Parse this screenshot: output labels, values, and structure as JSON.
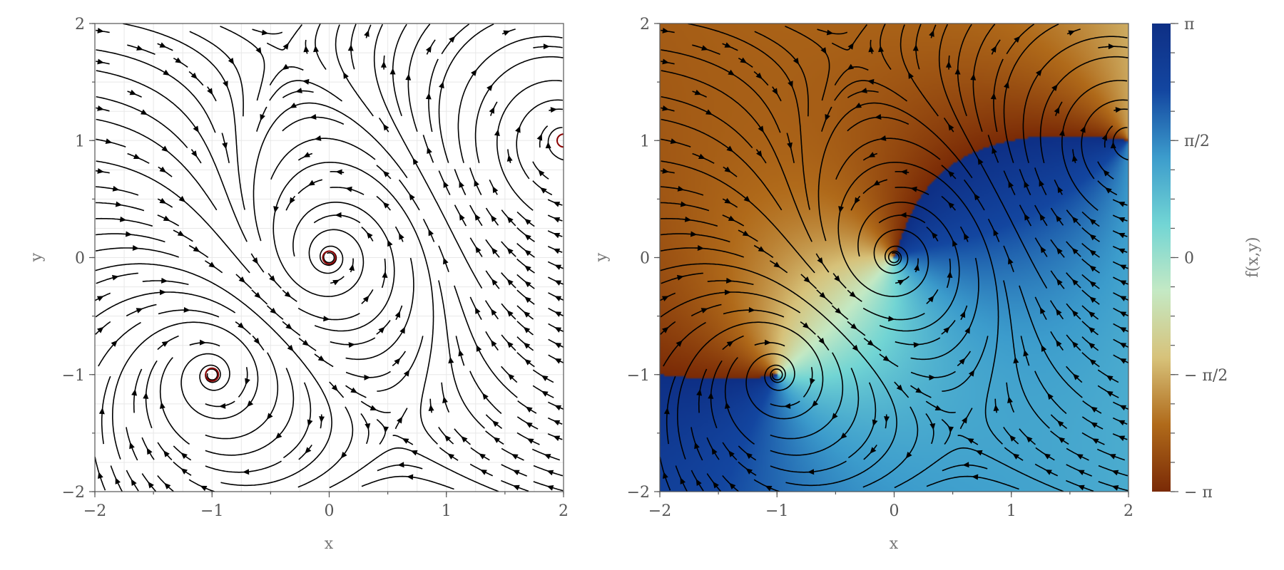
{
  "chart_data": [
    {
      "type": "streamplot",
      "panel": "left",
      "xlim": [
        -2,
        2
      ],
      "ylim": [
        -2,
        2
      ],
      "xlabel": "x",
      "ylabel": "y",
      "xticks": [
        -2,
        -1,
        0,
        1,
        2
      ],
      "yticks": [
        -2,
        -1,
        0,
        1,
        2
      ],
      "tick_labels_x": [
        "−2",
        "−1",
        "0",
        "1",
        "2"
      ],
      "tick_labels_y": [
        "−2",
        "−1",
        "0",
        "1",
        "2"
      ],
      "grid": true,
      "background": "white",
      "vortices": [
        {
          "x": 0,
          "y": 0,
          "sense": "counter-clockwise"
        },
        {
          "x": -1,
          "y": -1,
          "sense": "clockwise"
        },
        {
          "x": 2,
          "y": 1,
          "sense": "clockwise"
        }
      ],
      "stream_color": "#000000",
      "core_color": "#8b0000"
    },
    {
      "type": "streamplot",
      "panel": "right",
      "xlim": [
        -2,
        2
      ],
      "ylim": [
        -2,
        2
      ],
      "xlabel": "x",
      "ylabel": "y",
      "xticks": [
        -2,
        -1,
        0,
        1,
        2
      ],
      "yticks": [
        -2,
        -1,
        0,
        1,
        2
      ],
      "tick_labels_x": [
        "−2",
        "−1",
        "0",
        "1",
        "2"
      ],
      "tick_labels_y": [
        "−2",
        "−1",
        "0",
        "1",
        "2"
      ],
      "grid": false,
      "background": "f(x,y) phase field",
      "vortices": [
        {
          "x": 0,
          "y": 0,
          "sense": "counter-clockwise"
        },
        {
          "x": -1,
          "y": -1,
          "sense": "clockwise"
        },
        {
          "x": 2,
          "y": 1,
          "sense": "clockwise"
        }
      ],
      "stream_color": "#000000",
      "colorbar": {
        "label": "f(x,y)",
        "range": [
          -3.14159,
          3.14159
        ],
        "ticks": [
          -3.14159,
          -1.5708,
          0,
          1.5708,
          3.14159
        ],
        "tick_labels": [
          "− π",
          "− π/2",
          "0",
          "π/2",
          "π"
        ],
        "colormap": [
          "#7a2a06",
          "#b06a1a",
          "#d7c27a",
          "#c4e9c4",
          "#72d5d4",
          "#3c9ccc",
          "#1346a0",
          "#0e2f85"
        ]
      }
    }
  ]
}
